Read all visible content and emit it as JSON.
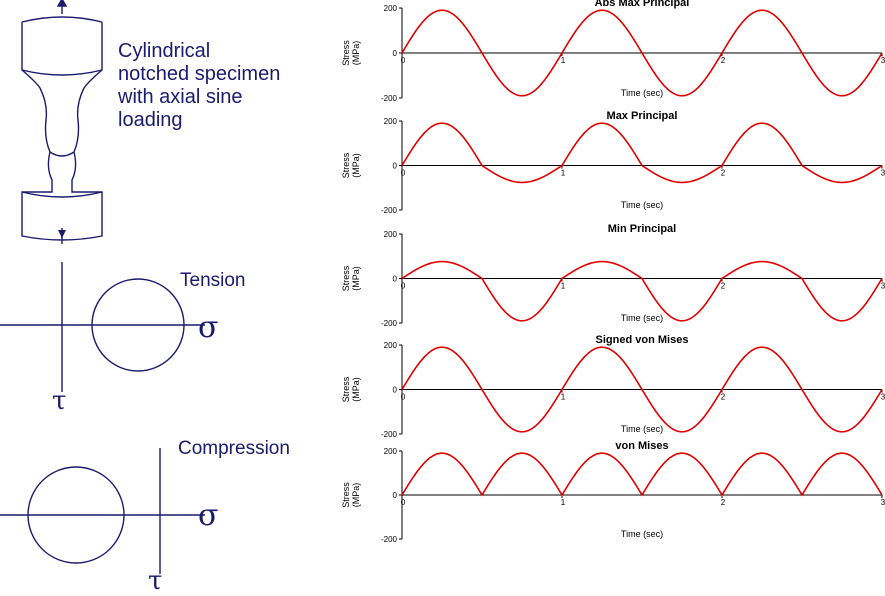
{
  "specimen": {
    "lines": [
      "Cylindrical",
      "notched specimen",
      "with axial sine",
      "loading"
    ]
  },
  "mohr": {
    "tension_label": "Tension",
    "compression_label": "Compression",
    "sigma": "σ",
    "tau": "τ"
  },
  "colors": {
    "diagram": "#1a1a6e",
    "series": "#e00000"
  },
  "chart_data": [
    {
      "type": "line",
      "title": "Abs Max Principal",
      "ylabel": "Stress (MPa)",
      "xlabel": "Time (sec)",
      "ylim": [
        -200,
        200
      ],
      "xlim": [
        0,
        3
      ],
      "yticks": [
        "200",
        "0",
        "-200"
      ],
      "xticks": [
        "0",
        "1",
        "2",
        "3"
      ],
      "series": [
        {
          "function": "abs_max_principal",
          "amplitude": 190,
          "period": 1
        }
      ]
    },
    {
      "type": "line",
      "title": "Max Principal",
      "ylabel": "Stress (MPa)",
      "xlabel": "Time (sec)",
      "ylim": [
        -200,
        200
      ],
      "xlim": [
        0,
        3
      ],
      "yticks": [
        "200",
        "0",
        "-200"
      ],
      "xticks": [
        "0",
        "1",
        "2",
        "3"
      ],
      "series": [
        {
          "function": "max_principal",
          "amplitude": 190,
          "period": 1
        }
      ]
    },
    {
      "type": "line",
      "title": "Min Principal",
      "ylabel": "Stress (MPa)",
      "xlabel": "Time (sec)",
      "ylim": [
        -200,
        200
      ],
      "xlim": [
        0,
        3
      ],
      "yticks": [
        "200",
        "0",
        "-200"
      ],
      "xticks": [
        "0",
        "1",
        "2",
        "3"
      ],
      "series": [
        {
          "function": "min_principal",
          "amplitude": 190,
          "period": 1
        }
      ]
    },
    {
      "type": "line",
      "title": "Signed von Mises",
      "ylabel": "Stress (MPa)",
      "xlabel": "Time (sec)",
      "ylim": [
        -200,
        200
      ],
      "xlim": [
        0,
        3
      ],
      "yticks": [
        "200",
        "0",
        "-200"
      ],
      "xticks": [
        "0",
        "1",
        "2",
        "3"
      ],
      "series": [
        {
          "function": "signed_von_mises",
          "amplitude": 190,
          "period": 1
        }
      ]
    },
    {
      "type": "line",
      "title": "von Mises",
      "ylabel": "Stress (MPa)",
      "xlabel": "Time (sec)",
      "ylim": [
        -200,
        200
      ],
      "xlim": [
        0,
        3
      ],
      "yticks": [
        "200",
        "0",
        "-200"
      ],
      "xticks": [
        "0",
        "1",
        "2",
        "3"
      ],
      "series": [
        {
          "function": "von_mises",
          "amplitude": 190,
          "period": 1
        }
      ]
    }
  ]
}
